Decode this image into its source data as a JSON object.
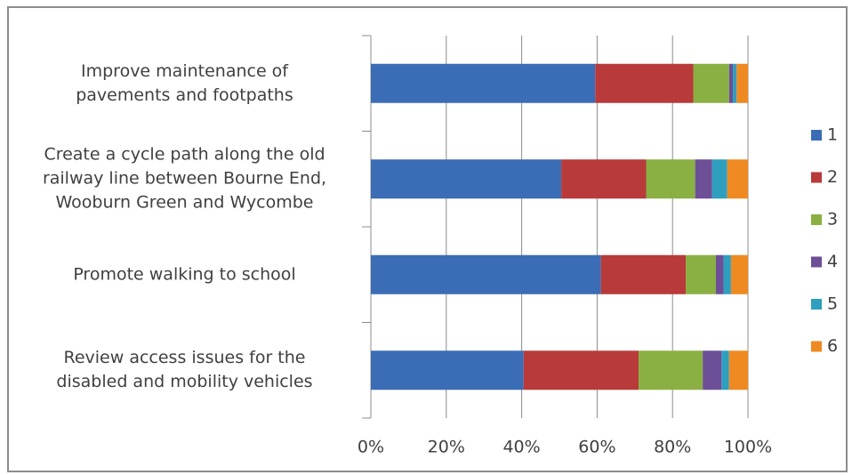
{
  "chart_data": {
    "type": "stacked_barh",
    "categories": [
      "Improve maintenance of\npavements and footpaths",
      "Create a cycle path along the old\nrailway line between Bourne End,\nWooburn Green and Wycombe",
      "Promote walking to school",
      "Review access issues for the\ndisabled and mobility vehicles"
    ],
    "series": [
      {
        "name": "1",
        "color": "#3a6db5",
        "values": [
          59.5,
          50.5,
          61,
          40.5
        ]
      },
      {
        "name": "2",
        "color": "#b83a3a",
        "values": [
          26,
          22.5,
          22.5,
          30.5
        ]
      },
      {
        "name": "3",
        "color": "#8ab043",
        "values": [
          9.5,
          13,
          8,
          17
        ]
      },
      {
        "name": "4",
        "color": "#6c4f96",
        "values": [
          1,
          4.5,
          2,
          5
        ]
      },
      {
        "name": "5",
        "color": "#2f9fbf",
        "values": [
          1,
          4,
          2,
          2
        ]
      },
      {
        "name": "6",
        "color": "#ef8a22",
        "values": [
          3,
          5.5,
          4.5,
          5
        ]
      }
    ],
    "xlim": [
      0,
      100
    ],
    "xticks": [
      {
        "value": 0,
        "label": "0%"
      },
      {
        "value": 20,
        "label": "20%"
      },
      {
        "value": 40,
        "label": "40%"
      },
      {
        "value": 60,
        "label": "60%"
      },
      {
        "value": 80,
        "label": "80%"
      },
      {
        "value": 100,
        "label": "100%"
      }
    ],
    "grid": true,
    "legend": "right"
  }
}
